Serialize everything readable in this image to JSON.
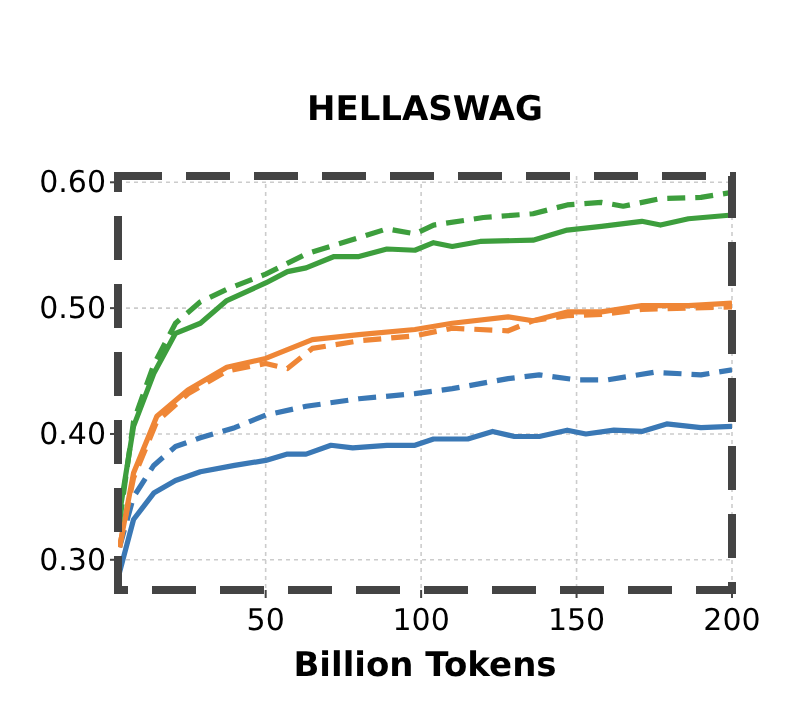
{
  "chart_data": {
    "type": "line",
    "title": "HELLASWAG",
    "xlabel": "Billion Tokens",
    "xlim": [
      2.5,
      200
    ],
    "ylim": [
      0.276,
      0.605
    ],
    "xticks": [
      50,
      100,
      150,
      200
    ],
    "yticks": [
      {
        "value": 0.3,
        "label": "0.30"
      },
      {
        "value": 0.4,
        "label": "0.40"
      },
      {
        "value": 0.5,
        "label": "0.50"
      },
      {
        "value": 0.6,
        "label": "0.60"
      }
    ],
    "grid": true,
    "marker": "none",
    "series": [
      {
        "color": "#3a78b5",
        "line_style": "solid",
        "x": [
          3,
          7.5,
          14,
          21,
          29,
          40,
          50,
          57,
          63,
          71,
          78,
          89,
          98,
          104,
          115,
          123,
          130,
          138,
          147,
          153,
          162,
          171,
          179,
          190,
          200
        ],
        "values": [
          0.29,
          0.332,
          0.353,
          0.363,
          0.37,
          0.375,
          0.379,
          0.384,
          0.384,
          0.391,
          0.389,
          0.391,
          0.391,
          0.396,
          0.396,
          0.402,
          0.398,
          0.398,
          0.403,
          0.4,
          0.403,
          0.402,
          0.408,
          0.405,
          0.406
        ]
      },
      {
        "color": "#3a78b5",
        "line_style": "dashed",
        "x": [
          3,
          7.5,
          14,
          21,
          29,
          40,
          50,
          63,
          80,
          98,
          110,
          128,
          138,
          150,
          160,
          175,
          190,
          200
        ],
        "values": [
          0.31,
          0.35,
          0.375,
          0.39,
          0.397,
          0.405,
          0.415,
          0.422,
          0.428,
          0.432,
          0.436,
          0.444,
          0.447,
          0.443,
          0.443,
          0.449,
          0.447,
          0.451
        ]
      },
      {
        "color": "#ef8636",
        "line_style": "solid",
        "x": [
          3,
          7.5,
          15,
          25,
          37.5,
          50,
          57,
          65,
          80,
          98,
          110,
          128,
          136,
          147,
          158,
          171,
          186,
          200
        ],
        "values": [
          0.31,
          0.369,
          0.414,
          0.435,
          0.453,
          0.46,
          0.467,
          0.475,
          0.479,
          0.483,
          0.488,
          0.493,
          0.49,
          0.497,
          0.497,
          0.502,
          0.502,
          0.504
        ]
      },
      {
        "color": "#ef8636",
        "line_style": "dashed",
        "x": [
          3,
          7.5,
          15,
          25,
          37.5,
          50,
          57,
          65,
          80,
          98,
          110,
          128,
          136,
          147,
          158,
          171,
          186,
          200
        ],
        "values": [
          0.31,
          0.365,
          0.41,
          0.432,
          0.45,
          0.456,
          0.452,
          0.468,
          0.474,
          0.478,
          0.484,
          0.482,
          0.49,
          0.494,
          0.495,
          0.499,
          0.5,
          0.501
        ]
      },
      {
        "color": "#3d9e3d",
        "line_style": "solid",
        "x": [
          3,
          7.5,
          14,
          21,
          29,
          37.5,
          50,
          57,
          63,
          72,
          80,
          89,
          98,
          104,
          110,
          119,
          136,
          147,
          158,
          171,
          177,
          186,
          200
        ],
        "values": [
          0.337,
          0.406,
          0.448,
          0.48,
          0.488,
          0.506,
          0.52,
          0.529,
          0.532,
          0.541,
          0.541,
          0.547,
          0.546,
          0.552,
          0.549,
          0.553,
          0.554,
          0.562,
          0.565,
          0.569,
          0.566,
          0.571,
          0.574
        ]
      },
      {
        "color": "#3d9e3d",
        "line_style": "dashed",
        "x": [
          3,
          7.5,
          14,
          21,
          29,
          37.5,
          50,
          63,
          72,
          80,
          89,
          98,
          104,
          120,
          136,
          147,
          158,
          165,
          177,
          190,
          200
        ],
        "values": [
          0.33,
          0.41,
          0.455,
          0.488,
          0.505,
          0.515,
          0.527,
          0.543,
          0.55,
          0.556,
          0.563,
          0.559,
          0.566,
          0.572,
          0.575,
          0.582,
          0.584,
          0.581,
          0.587,
          0.588,
          0.592
        ]
      }
    ]
  }
}
